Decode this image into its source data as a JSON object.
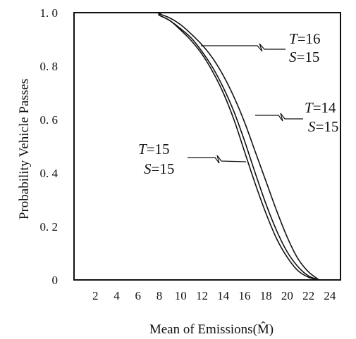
{
  "chart_data": {
    "type": "line",
    "xlabel": "Mean of Emissions(M̂)",
    "ylabel": "Probability Vehicle Passes",
    "xlim": [
      0,
      25
    ],
    "ylim": [
      0,
      1.0
    ],
    "x_ticks": [
      "2",
      "4",
      "6",
      "8",
      "10",
      "12",
      "14",
      "16",
      "18",
      "20",
      "22",
      "24"
    ],
    "y_ticks": [
      "0",
      "0.2",
      "0.4",
      "0.6",
      "0.8",
      "1.0"
    ],
    "y_tick_labels": [
      "0",
      "0. 2",
      "0. 4",
      "0. 6",
      "0. 8",
      "1. 0"
    ],
    "grid": false,
    "series": [
      {
        "x": [
          0,
          7.4,
          8,
          9,
          10,
          11,
          12,
          13,
          14,
          15,
          16,
          17,
          18,
          19,
          20,
          21,
          22,
          23
        ],
        "y": [
          1.0,
          1.0,
          0.995,
          0.98,
          0.955,
          0.92,
          0.88,
          0.83,
          0.765,
          0.685,
          0.59,
          0.48,
          0.37,
          0.26,
          0.16,
          0.08,
          0.03,
          0.0
        ]
      },
      {
        "x": [
          0,
          7.4,
          8,
          9,
          10,
          11,
          12,
          13,
          14,
          15,
          16,
          17,
          18,
          19,
          20,
          21,
          22,
          23
        ],
        "y": [
          1.0,
          1.0,
          0.99,
          0.97,
          0.94,
          0.905,
          0.855,
          0.795,
          0.72,
          0.63,
          0.52,
          0.4,
          0.285,
          0.185,
          0.105,
          0.05,
          0.015,
          0.0
        ]
      },
      {
        "x": [
          0,
          7.4,
          8,
          9,
          10,
          11,
          12,
          13,
          14,
          15,
          16,
          17,
          18,
          19,
          20,
          21,
          22,
          23
        ],
        "y": [
          1.0,
          1.0,
          0.99,
          0.97,
          0.935,
          0.895,
          0.845,
          0.78,
          0.7,
          0.6,
          0.48,
          0.36,
          0.25,
          0.155,
          0.085,
          0.035,
          0.01,
          0.0
        ]
      }
    ],
    "annotations": [
      {
        "t": "16",
        "s": "15"
      },
      {
        "t": "14",
        "s": "15"
      },
      {
        "t": "15",
        "s": "15"
      }
    ]
  }
}
